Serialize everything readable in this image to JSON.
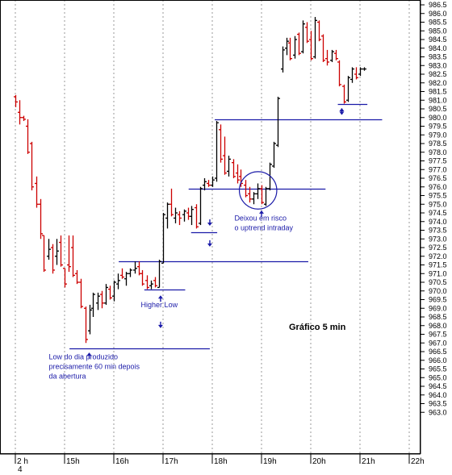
{
  "chart_data": {
    "type": "ohlc",
    "title": "Gráfico 5 min",
    "xlabel": "",
    "ylabel": "",
    "ylim": [
      962.5,
      987
    ],
    "yticks": [
      963.0,
      963.5,
      964.0,
      964.5,
      965.0,
      965.5,
      966.0,
      966.5,
      967.0,
      967.5,
      968.0,
      968.5,
      969.0,
      969.5,
      970.0,
      970.5,
      971.0,
      971.5,
      972.0,
      972.5,
      973.0,
      973.5,
      974.0,
      974.5,
      975.0,
      975.5,
      976.0,
      976.5,
      977.0,
      977.5,
      978.0,
      978.5,
      979.0,
      979.5,
      980.0,
      980.5,
      981.0,
      981.5,
      982.0,
      982.5,
      983.0,
      983.5,
      984.0,
      984.5,
      985.0,
      985.5,
      986.0,
      986.5
    ],
    "xticks": [
      {
        "label": "2 h",
        "hour": 14
      },
      {
        "label": "15h",
        "hour": 15
      },
      {
        "label": "16h",
        "hour": 16
      },
      {
        "label": "17h",
        "hour": 17
      },
      {
        "label": "18h",
        "hour": 18
      },
      {
        "label": "19h",
        "hour": 19
      },
      {
        "label": "20h",
        "hour": 20
      },
      {
        "label": "21h",
        "hour": 21
      },
      {
        "label": "22h",
        "hour": 22
      }
    ],
    "day_label": "4",
    "grid": true,
    "up_color": "#000000",
    "down_color": "#cc0000",
    "bars": [
      {
        "t": 14.0,
        "o": 981.2,
        "h": 981.3,
        "l": 980.6,
        "c": 980.9
      },
      {
        "t": 14.08,
        "o": 980.3,
        "h": 981.0,
        "l": 979.6,
        "c": 980.0
      },
      {
        "t": 14.17,
        "o": 980.0,
        "h": 980.1,
        "l": 979.8,
        "c": 979.9
      },
      {
        "t": 14.25,
        "o": 979.5,
        "h": 979.9,
        "l": 977.9,
        "c": 978.0
      },
      {
        "t": 14.33,
        "o": 978.5,
        "h": 978.6,
        "l": 975.8,
        "c": 976.0
      },
      {
        "t": 14.42,
        "o": 976.2,
        "h": 976.6,
        "l": 974.8,
        "c": 975.0
      },
      {
        "t": 14.5,
        "o": 975.0,
        "h": 975.3,
        "l": 973.0,
        "c": 973.3
      },
      {
        "t": 14.58,
        "o": 973.2,
        "h": 973.2,
        "l": 971.1,
        "c": 971.2
      },
      {
        "t": 14.67,
        "o": 972.0,
        "h": 973.0,
        "l": 971.8,
        "c": 972.4
      },
      {
        "t": 14.75,
        "o": 972.5,
        "h": 972.7,
        "l": 971.0,
        "c": 971.2
      },
      {
        "t": 14.83,
        "o": 972.0,
        "h": 973.0,
        "l": 971.5,
        "c": 972.3
      },
      {
        "t": 14.92,
        "o": 972.8,
        "h": 973.2,
        "l": 971.4,
        "c": 971.5
      },
      {
        "t": 15.0,
        "o": 971.3,
        "h": 971.3,
        "l": 970.2,
        "c": 970.4
      },
      {
        "t": 15.08,
        "o": 971.5,
        "h": 973.2,
        "l": 971.1,
        "c": 971.4
      },
      {
        "t": 15.17,
        "o": 972.5,
        "h": 973.2,
        "l": 970.8,
        "c": 970.9
      },
      {
        "t": 15.25,
        "o": 971.0,
        "h": 971.2,
        "l": 970.4,
        "c": 970.5
      },
      {
        "t": 15.33,
        "o": 970.5,
        "h": 970.7,
        "l": 969.0,
        "c": 969.1
      },
      {
        "t": 15.42,
        "o": 969.0,
        "h": 969.1,
        "l": 967.0,
        "c": 967.2
      },
      {
        "t": 15.5,
        "o": 967.7,
        "h": 969.2,
        "l": 967.5,
        "c": 968.9
      },
      {
        "t": 15.58,
        "o": 969.0,
        "h": 969.9,
        "l": 968.5,
        "c": 969.8
      },
      {
        "t": 15.67,
        "o": 969.3,
        "h": 969.9,
        "l": 968.9,
        "c": 969.7
      },
      {
        "t": 15.75,
        "o": 969.8,
        "h": 970.0,
        "l": 969.0,
        "c": 969.3
      },
      {
        "t": 15.83,
        "o": 969.3,
        "h": 970.4,
        "l": 969.2,
        "c": 970.2
      },
      {
        "t": 15.92,
        "o": 970.1,
        "h": 970.3,
        "l": 969.5,
        "c": 969.6
      },
      {
        "t": 16.0,
        "o": 969.7,
        "h": 970.6,
        "l": 969.4,
        "c": 970.5
      },
      {
        "t": 16.08,
        "o": 970.4,
        "h": 971.0,
        "l": 970.1,
        "c": 970.6
      },
      {
        "t": 16.17,
        "o": 970.9,
        "h": 971.3,
        "l": 970.7,
        "c": 970.8
      },
      {
        "t": 16.25,
        "o": 970.7,
        "h": 971.1,
        "l": 970.3,
        "c": 971.0
      },
      {
        "t": 16.33,
        "o": 971.0,
        "h": 971.3,
        "l": 970.8,
        "c": 971.2
      },
      {
        "t": 16.42,
        "o": 971.2,
        "h": 971.7,
        "l": 971.0,
        "c": 971.3
      },
      {
        "t": 16.5,
        "o": 971.4,
        "h": 971.7,
        "l": 970.9,
        "c": 971.0
      },
      {
        "t": 16.58,
        "o": 971.0,
        "h": 971.2,
        "l": 970.3,
        "c": 970.4
      },
      {
        "t": 16.67,
        "o": 970.6,
        "h": 970.9,
        "l": 970.1,
        "c": 970.2
      },
      {
        "t": 16.75,
        "o": 970.3,
        "h": 970.6,
        "l": 970.1,
        "c": 970.4
      },
      {
        "t": 16.83,
        "o": 970.6,
        "h": 970.8,
        "l": 970.2,
        "c": 970.3
      },
      {
        "t": 16.92,
        "o": 970.2,
        "h": 971.8,
        "l": 970.2,
        "c": 971.7
      },
      {
        "t": 17.0,
        "o": 971.6,
        "h": 974.5,
        "l": 971.6,
        "c": 974.4
      },
      {
        "t": 17.08,
        "o": 974.2,
        "h": 975.1,
        "l": 973.6,
        "c": 975.0
      },
      {
        "t": 17.17,
        "o": 975.0,
        "h": 975.9,
        "l": 974.3,
        "c": 974.4
      },
      {
        "t": 17.25,
        "o": 974.2,
        "h": 974.8,
        "l": 973.9,
        "c": 974.5
      },
      {
        "t": 17.33,
        "o": 974.4,
        "h": 974.6,
        "l": 973.8,
        "c": 974.2
      },
      {
        "t": 17.42,
        "o": 974.4,
        "h": 974.7,
        "l": 974.0,
        "c": 974.6
      },
      {
        "t": 17.5,
        "o": 974.5,
        "h": 974.8,
        "l": 974.1,
        "c": 974.3
      },
      {
        "t": 17.58,
        "o": 974.3,
        "h": 974.9,
        "l": 973.8,
        "c": 974.7
      },
      {
        "t": 17.67,
        "o": 974.8,
        "h": 975.0,
        "l": 973.6,
        "c": 973.7
      },
      {
        "t": 17.75,
        "o": 973.9,
        "h": 976.0,
        "l": 973.8,
        "c": 975.9
      },
      {
        "t": 17.83,
        "o": 976.1,
        "h": 976.5,
        "l": 975.8,
        "c": 976.3
      },
      {
        "t": 17.92,
        "o": 976.2,
        "h": 976.4,
        "l": 976.0,
        "c": 976.1
      },
      {
        "t": 18.0,
        "o": 976.1,
        "h": 976.6,
        "l": 976.0,
        "c": 976.4
      },
      {
        "t": 18.08,
        "o": 976.5,
        "h": 979.8,
        "l": 976.3,
        "c": 979.7
      },
      {
        "t": 18.17,
        "o": 979.3,
        "h": 979.6,
        "l": 977.4,
        "c": 977.6
      },
      {
        "t": 18.25,
        "o": 977.8,
        "h": 978.9,
        "l": 976.7,
        "c": 976.8
      },
      {
        "t": 18.33,
        "o": 976.9,
        "h": 977.8,
        "l": 976.6,
        "c": 977.6
      },
      {
        "t": 18.42,
        "o": 977.4,
        "h": 977.6,
        "l": 976.5,
        "c": 976.6
      },
      {
        "t": 18.5,
        "o": 976.8,
        "h": 977.3,
        "l": 976.2,
        "c": 976.4
      },
      {
        "t": 18.58,
        "o": 976.6,
        "h": 977.0,
        "l": 976.0,
        "c": 976.2
      },
      {
        "t": 18.67,
        "o": 976.1,
        "h": 976.4,
        "l": 975.4,
        "c": 975.5
      },
      {
        "t": 18.75,
        "o": 975.6,
        "h": 976.0,
        "l": 975.1,
        "c": 975.3
      },
      {
        "t": 18.83,
        "o": 975.3,
        "h": 975.7,
        "l": 975.0,
        "c": 975.6
      },
      {
        "t": 18.92,
        "o": 975.6,
        "h": 976.2,
        "l": 975.3,
        "c": 975.9
      },
      {
        "t": 19.0,
        "o": 975.9,
        "h": 976.1,
        "l": 975.0,
        "c": 975.1
      },
      {
        "t": 19.08,
        "o": 975.0,
        "h": 976.0,
        "l": 974.9,
        "c": 975.9
      },
      {
        "t": 19.17,
        "o": 975.9,
        "h": 977.4,
        "l": 975.8,
        "c": 977.3
      },
      {
        "t": 19.25,
        "o": 977.2,
        "h": 978.6,
        "l": 977.1,
        "c": 978.5
      },
      {
        "t": 19.33,
        "o": 978.4,
        "h": 981.2,
        "l": 978.3,
        "c": 981.1
      },
      {
        "t": 19.42,
        "o": 982.8,
        "h": 984.1,
        "l": 982.6,
        "c": 983.9
      },
      {
        "t": 19.5,
        "o": 984.0,
        "h": 984.6,
        "l": 983.6,
        "c": 984.4
      },
      {
        "t": 19.58,
        "o": 984.3,
        "h": 984.6,
        "l": 983.3,
        "c": 983.4
      },
      {
        "t": 19.67,
        "o": 983.6,
        "h": 984.7,
        "l": 983.4,
        "c": 984.5
      },
      {
        "t": 19.75,
        "o": 984.8,
        "h": 984.9,
        "l": 983.6,
        "c": 983.7
      },
      {
        "t": 19.83,
        "o": 983.8,
        "h": 985.6,
        "l": 983.7,
        "c": 985.4
      },
      {
        "t": 19.92,
        "o": 985.2,
        "h": 985.5,
        "l": 984.3,
        "c": 984.4
      },
      {
        "t": 20.0,
        "o": 984.5,
        "h": 985.0,
        "l": 983.3,
        "c": 983.4
      },
      {
        "t": 20.08,
        "o": 983.5,
        "h": 985.8,
        "l": 983.4,
        "c": 985.6
      },
      {
        "t": 20.17,
        "o": 985.5,
        "h": 985.6,
        "l": 984.4,
        "c": 984.5
      },
      {
        "t": 20.25,
        "o": 984.7,
        "h": 984.8,
        "l": 983.2,
        "c": 983.3
      },
      {
        "t": 20.33,
        "o": 983.4,
        "h": 983.9,
        "l": 983.0,
        "c": 983.2
      },
      {
        "t": 20.42,
        "o": 983.3,
        "h": 983.9,
        "l": 983.2,
        "c": 983.8
      },
      {
        "t": 20.5,
        "o": 983.7,
        "h": 983.9,
        "l": 983.3,
        "c": 983.4
      },
      {
        "t": 20.58,
        "o": 983.2,
        "h": 983.3,
        "l": 981.8,
        "c": 981.9
      },
      {
        "t": 20.67,
        "o": 981.8,
        "h": 981.9,
        "l": 980.8,
        "c": 980.9
      },
      {
        "t": 20.75,
        "o": 981.0,
        "h": 982.4,
        "l": 980.9,
        "c": 982.3
      },
      {
        "t": 20.83,
        "o": 982.2,
        "h": 982.9,
        "l": 982.0,
        "c": 982.8
      },
      {
        "t": 20.92,
        "o": 982.5,
        "h": 982.9,
        "l": 982.2,
        "c": 982.3
      },
      {
        "t": 21.0,
        "o": 982.5,
        "h": 982.9,
        "l": 982.4,
        "c": 982.8
      },
      {
        "t": 21.08,
        "o": 982.8,
        "h": 982.9,
        "l": 982.7,
        "c": 982.8
      }
    ],
    "hlines": [
      {
        "y": 966.7,
        "x_start": 15.1,
        "x_end": 17.95
      },
      {
        "y": 970.1,
        "x_start": 16.62,
        "x_end": 17.45
      },
      {
        "y": 971.7,
        "x_start": 16.1,
        "x_end": 19.95
      },
      {
        "y": 973.4,
        "x_start": 17.57,
        "x_end": 18.1
      },
      {
        "y": 975.9,
        "x_start": 17.52,
        "x_end": 20.3
      },
      {
        "y": 979.9,
        "x_start": 18.05,
        "x_end": 21.45
      },
      {
        "y": 980.8,
        "x_start": 20.55,
        "x_end": 21.15
      }
    ],
    "arrows": [
      {
        "x": 15.5,
        "y": 966.4,
        "dir": "up"
      },
      {
        "x": 16.95,
        "y": 967.9,
        "dir": "down"
      },
      {
        "x": 16.95,
        "y": 969.7,
        "dir": "up"
      },
      {
        "x": 17.95,
        "y": 972.6,
        "dir": "down"
      },
      {
        "x": 17.95,
        "y": 973.8,
        "dir": "down"
      },
      {
        "x": 19.0,
        "y": 974.6,
        "dir": "up"
      },
      {
        "x": 20.63,
        "y": 980.5,
        "dir": "up"
      },
      {
        "x": 20.63,
        "y": 980.2,
        "dir": "down"
      }
    ],
    "circle": {
      "x": 18.93,
      "y": 975.8,
      "r": 0.38
    },
    "annotations": [
      {
        "lines": [
          "Low  do dia produzido",
          "precisamente 60 min depois",
          "da abertura"
        ],
        "x": 14.68,
        "y": 966.05
      },
      {
        "lines": [
          "Higher Low"
        ],
        "x": 16.55,
        "y": 969.05
      },
      {
        "lines": [
          "Deixou em risco",
          "o uptrend intraday"
        ],
        "x": 18.45,
        "y": 974.05
      }
    ]
  }
}
